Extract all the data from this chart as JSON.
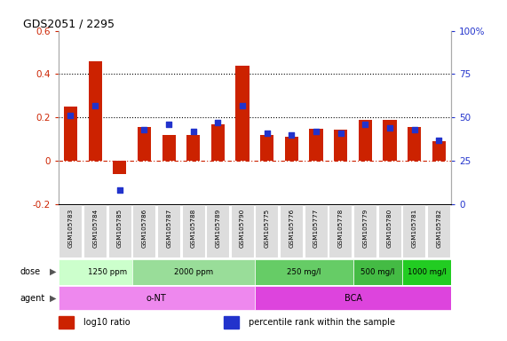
{
  "title": "GDS2051 / 2295",
  "samples": [
    "GSM105783",
    "GSM105784",
    "GSM105785",
    "GSM105786",
    "GSM105787",
    "GSM105788",
    "GSM105789",
    "GSM105790",
    "GSM105775",
    "GSM105776",
    "GSM105777",
    "GSM105778",
    "GSM105779",
    "GSM105780",
    "GSM105781",
    "GSM105782"
  ],
  "log10_ratio": [
    0.25,
    0.46,
    -0.06,
    0.155,
    0.12,
    0.12,
    0.17,
    0.44,
    0.12,
    0.11,
    0.15,
    0.145,
    0.19,
    0.19,
    0.155,
    0.09
  ],
  "percentile_pct": [
    51,
    57,
    8.5,
    43,
    46,
    42,
    47,
    57,
    41,
    40,
    42,
    41,
    46,
    44,
    43,
    37
  ],
  "bar_color": "#cc2200",
  "dot_color": "#2233cc",
  "ylim_left": [
    -0.2,
    0.6
  ],
  "ylim_right": [
    0,
    100
  ],
  "yticks_left": [
    -0.2,
    0.0,
    0.2,
    0.4,
    0.6
  ],
  "yticks_right": [
    0,
    25,
    50,
    75,
    100
  ],
  "hlines_y": [
    0.0,
    0.2,
    0.4
  ],
  "hline_colors": [
    "#cc2200",
    "#000000",
    "#000000"
  ],
  "hline_lw": [
    0.8,
    0.8,
    0.8
  ],
  "dose_groups": [
    {
      "label": "1250 ppm",
      "start": 0,
      "end": 3,
      "color": "#ccffcc"
    },
    {
      "label": "2000 ppm",
      "start": 3,
      "end": 7,
      "color": "#99dd99"
    },
    {
      "label": "250 mg/l",
      "start": 8,
      "end": 11,
      "color": "#66cc66"
    },
    {
      "label": "500 mg/l",
      "start": 12,
      "end": 13,
      "color": "#44bb44"
    },
    {
      "label": "1000 mg/l",
      "start": 14,
      "end": 15,
      "color": "#22cc22"
    }
  ],
  "agent_groups": [
    {
      "label": "o-NT",
      "start": 0,
      "end": 7,
      "color": "#ee88ee"
    },
    {
      "label": "BCA",
      "start": 8,
      "end": 15,
      "color": "#dd44dd"
    }
  ],
  "legend_items": [
    {
      "color": "#cc2200",
      "label": "log10 ratio",
      "marker": "s"
    },
    {
      "color": "#2233cc",
      "label": "percentile rank within the sample",
      "marker": "s"
    }
  ],
  "dose_label": "dose",
  "agent_label": "agent",
  "label_color": "#555555",
  "sample_bg": "#dddddd",
  "background_color": "#ffffff"
}
